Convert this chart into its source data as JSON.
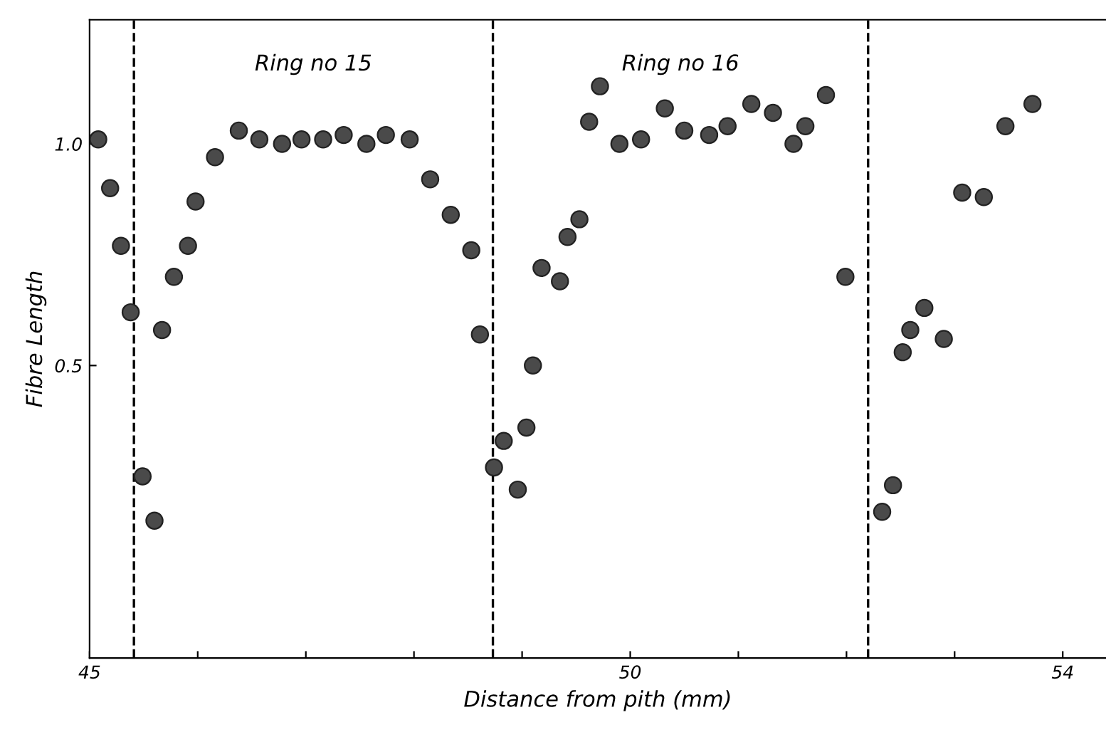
{
  "chart_data": {
    "type": "scatter",
    "xlabel": "Distance from pith (mm)",
    "ylabel": "Fibre Length",
    "x": [
      45.08,
      45.19,
      45.29,
      45.38,
      45.49,
      45.6,
      45.67,
      45.78,
      45.91,
      45.98,
      46.16,
      46.38,
      46.57,
      46.78,
      46.96,
      47.16,
      47.35,
      47.56,
      47.74,
      47.96,
      48.15,
      48.34,
      48.53,
      48.61,
      48.74,
      48.83,
      48.96,
      49.04,
      49.1,
      49.18,
      49.35,
      49.42,
      49.53,
      49.62,
      49.72,
      49.9,
      50.1,
      50.32,
      50.5,
      50.73,
      50.9,
      51.12,
      51.32,
      51.51,
      51.62,
      51.81,
      51.99,
      52.33,
      52.43,
      52.52,
      52.59,
      52.72,
      52.9,
      53.07,
      53.27,
      53.47,
      53.72
    ],
    "values": [
      1.01,
      0.9,
      0.77,
      0.62,
      0.25,
      0.15,
      0.58,
      0.7,
      0.77,
      0.87,
      0.97,
      1.03,
      1.01,
      1.0,
      1.01,
      1.01,
      1.02,
      1.0,
      1.02,
      1.01,
      0.92,
      0.84,
      0.76,
      0.57,
      0.27,
      0.33,
      0.22,
      0.36,
      0.5,
      0.72,
      0.69,
      0.79,
      0.83,
      1.05,
      1.13,
      1.0,
      1.01,
      1.08,
      1.03,
      1.02,
      1.04,
      1.09,
      1.07,
      1.0,
      1.04,
      1.11,
      0.7,
      0.17,
      0.23,
      0.53,
      0.58,
      0.63,
      0.56,
      0.89,
      0.88,
      1.04,
      1.09
    ],
    "color": "#4a4a4a",
    "marker": "circle",
    "xlim": [
      45,
      54.4
    ],
    "ylim": [
      -0.16,
      1.28
    ],
    "xticks": [
      45,
      {
        "value": 46,
        "label": null
      },
      {
        "value": 47,
        "label": null
      },
      {
        "value": 48,
        "label": null
      },
      {
        "value": 49,
        "label": null
      },
      50,
      {
        "value": 51,
        "label": null
      },
      {
        "value": 52,
        "label": null
      },
      {
        "value": 53,
        "label": null
      },
      54
    ],
    "yticks": [
      {
        "value": 0.5,
        "label": "0.5"
      },
      {
        "value": 1.0,
        "label": "1.0"
      }
    ],
    "ref_lines": [
      {
        "axis": "x",
        "value": 45.41,
        "line_style": "dashed",
        "color": "#000000"
      },
      {
        "axis": "x",
        "value": 48.73,
        "line_style": "dashed",
        "color": "#000000"
      },
      {
        "axis": "x",
        "value": 52.2,
        "line_style": "dashed",
        "color": "#000000"
      }
    ],
    "annotations": [
      "Ring no 15",
      "Ring no 16"
    ],
    "grid": false,
    "legend": false
  }
}
